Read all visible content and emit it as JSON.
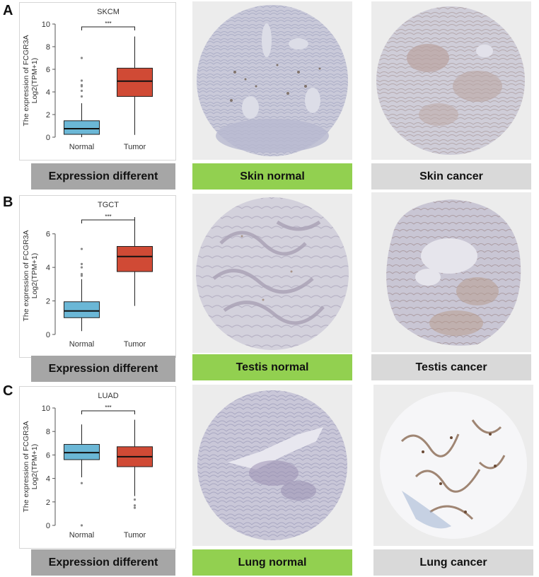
{
  "panels": [
    {
      "letter": "A",
      "expression_caption": "Expression different",
      "normal_caption": "Skin normal",
      "cancer_caption": "Skin cancer"
    },
    {
      "letter": "B",
      "expression_caption": "Expression different",
      "normal_caption": "Testis normal",
      "cancer_caption": "Testis cancer"
    },
    {
      "letter": "C",
      "expression_caption": "Expression different",
      "normal_caption": "Lung normal",
      "cancer_caption": "Lung cancer"
    }
  ],
  "colors": {
    "normal_box": "#6bb7d6",
    "tumor_box": "#d04a35",
    "caption_gray": "#a6a6a6",
    "caption_green": "#92d050",
    "caption_light": "#d9d9d9"
  },
  "chart_data": [
    {
      "type": "box",
      "title": "SKCM",
      "ylabel_line1": "The expression of FCGR3A",
      "ylabel_line2": "Log2(TPM+1)",
      "categories": [
        "Normal",
        "Tumor"
      ],
      "ylim": [
        0,
        10
      ],
      "yticks": [
        0,
        2,
        4,
        6,
        8,
        10
      ],
      "significance": "***",
      "boxes": [
        {
          "category": "Normal",
          "whisker_low": 0.0,
          "q1": 0.25,
          "median": 0.75,
          "q3": 1.45,
          "whisker_high": 3.0,
          "outliers": [
            3.6,
            4.1,
            4.5,
            4.6,
            5.0,
            7.0
          ]
        },
        {
          "category": "Tumor",
          "whisker_low": 0.2,
          "q1": 3.6,
          "median": 4.95,
          "q3": 6.1,
          "whisker_high": 8.9,
          "outliers": []
        }
      ]
    },
    {
      "type": "box",
      "title": "TGCT",
      "ylabel_line1": "The expression of FCGR3A",
      "ylabel_line2": "Log2(TPM+1)",
      "categories": [
        "Normal",
        "Tumor"
      ],
      "ylim": [
        0,
        7
      ],
      "yticks": [
        0,
        2,
        4,
        6
      ],
      "significance": "***",
      "boxes": [
        {
          "category": "Normal",
          "whisker_low": 0.2,
          "q1": 1.0,
          "median": 1.4,
          "q3": 1.95,
          "whisker_high": 3.3,
          "outliers": [
            3.5,
            3.6,
            4.0,
            4.2,
            5.1
          ]
        },
        {
          "category": "Tumor",
          "whisker_low": 1.7,
          "q1": 3.75,
          "median": 4.65,
          "q3": 5.25,
          "whisker_high": 7.0,
          "outliers": []
        }
      ]
    },
    {
      "type": "box",
      "title": "LUAD",
      "ylabel_line1": "The expression of FCGR3A",
      "ylabel_line2": "Log2(TPM+1)",
      "categories": [
        "Normal",
        "Tumor"
      ],
      "ylim": [
        0,
        10
      ],
      "yticks": [
        0,
        2,
        4,
        6,
        8,
        10
      ],
      "significance": "***",
      "boxes": [
        {
          "category": "Normal",
          "whisker_low": 4.1,
          "q1": 5.6,
          "median": 6.2,
          "q3": 6.9,
          "whisker_high": 8.6,
          "outliers": [
            3.6,
            0.0
          ]
        },
        {
          "category": "Tumor",
          "whisker_low": 2.5,
          "q1": 5.0,
          "median": 5.85,
          "q3": 6.7,
          "whisker_high": 9.0,
          "outliers": [
            2.2,
            1.7,
            1.5
          ]
        }
      ]
    }
  ]
}
